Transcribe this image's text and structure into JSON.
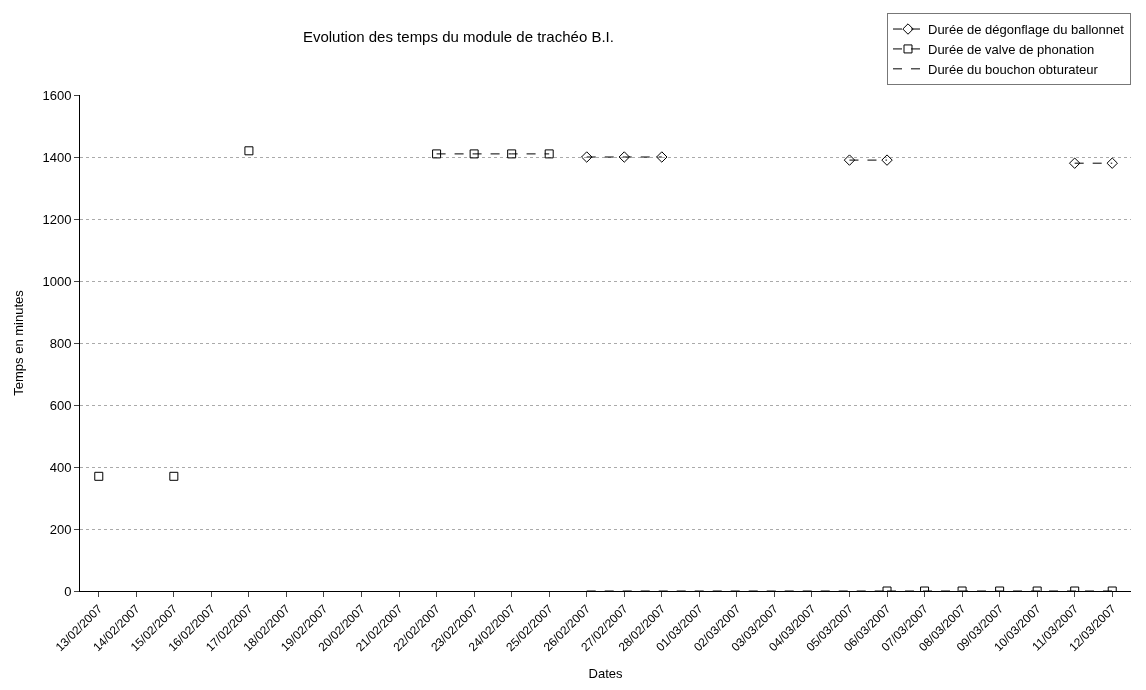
{
  "chart_data": {
    "type": "line",
    "title": "Evolution des temps du module de trachéo B.I.",
    "xlabel": "Dates",
    "ylabel": "Temps en minutes",
    "categories": [
      "13/02/2007",
      "14/02/2007",
      "15/02/2007",
      "16/02/2007",
      "17/02/2007",
      "18/02/2007",
      "19/02/2007",
      "20/02/2007",
      "21/02/2007",
      "22/02/2007",
      "23/02/2007",
      "24/02/2007",
      "25/02/2007",
      "26/02/2007",
      "27/02/2007",
      "28/02/2007",
      "01/03/2007",
      "02/03/2007",
      "03/03/2007",
      "04/03/2007",
      "05/03/2007",
      "06/03/2007",
      "07/03/2007",
      "08/03/2007",
      "09/03/2007",
      "10/03/2007",
      "11/03/2007",
      "12/03/2007"
    ],
    "series": [
      {
        "name": "Durée de dégonflage du ballonnet",
        "color": "#000000",
        "marker": "diamond",
        "values": [
          null,
          null,
          null,
          null,
          null,
          null,
          null,
          null,
          null,
          null,
          null,
          null,
          null,
          1400,
          1400,
          1400,
          null,
          null,
          null,
          null,
          1390,
          1390,
          null,
          null,
          null,
          null,
          1380,
          1380
        ]
      },
      {
        "name": "Durée de valve de phonation",
        "color": "#000000",
        "marker": "square",
        "values": [
          370,
          null,
          370,
          null,
          1420,
          null,
          null,
          null,
          null,
          1410,
          1410,
          1410,
          1410,
          null,
          null,
          null,
          null,
          null,
          null,
          null,
          null,
          0,
          0,
          0,
          0,
          0,
          0,
          0
        ]
      },
      {
        "name": "Durée du bouchon obturateur",
        "color": "#000000",
        "marker": "none",
        "values": [
          null,
          null,
          null,
          null,
          null,
          null,
          null,
          null,
          null,
          null,
          null,
          null,
          null,
          0,
          0,
          0,
          0,
          0,
          0,
          0,
          0,
          0,
          null,
          null,
          null,
          null,
          null,
          null
        ]
      }
    ],
    "ylim": [
      0,
      1600
    ],
    "yticks": [
      0,
      200,
      400,
      600,
      800,
      1000,
      1200,
      1400,
      1600
    ],
    "grid": "y",
    "legend": "top right",
    "line_style": "dashed"
  }
}
